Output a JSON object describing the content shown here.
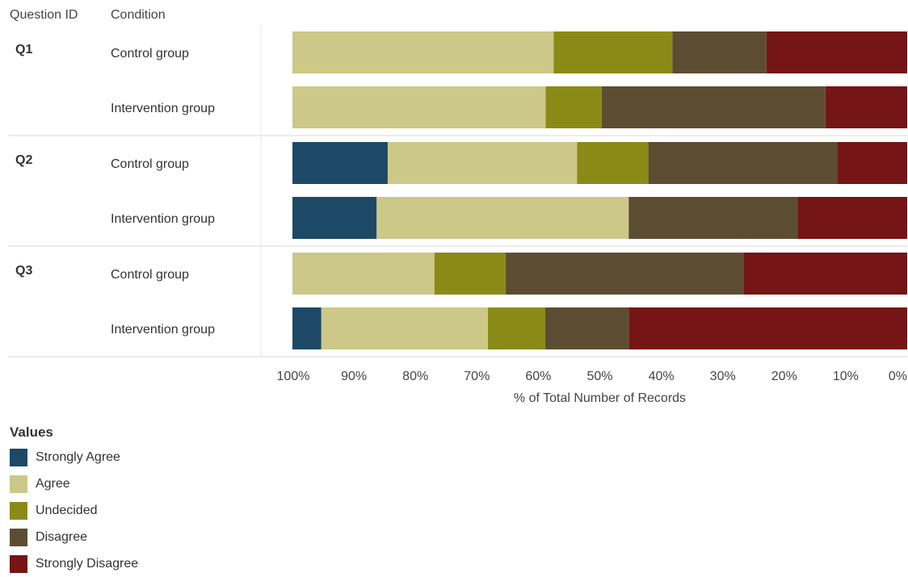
{
  "header": {
    "question_id_label": "Question ID",
    "condition_label": "Condition"
  },
  "legend": {
    "title": "Values",
    "items": [
      {
        "label": "Strongly Agree",
        "color": "#1d4966"
      },
      {
        "label": "Agree",
        "color": "#cbc888"
      },
      {
        "label": "Undecided",
        "color": "#8a8b16"
      },
      {
        "label": "Disagree",
        "color": "#5c4d32"
      },
      {
        "label": "Strongly Disagree",
        "color": "#751516"
      }
    ]
  },
  "chart_data": {
    "type": "bar",
    "orientation": "horizontal-stacked-100",
    "xlabel": "% of Total Number of Records",
    "xlim": [
      100,
      0
    ],
    "x_ticks": [
      "100%",
      "90%",
      "80%",
      "70%",
      "60%",
      "50%",
      "40%",
      "30%",
      "20%",
      "10%",
      "0%"
    ],
    "series_order": [
      "Strongly Agree",
      "Agree",
      "Undecided",
      "Disagree",
      "Strongly Disagree"
    ],
    "groups": [
      {
        "question": "Q1",
        "rows": [
          {
            "condition": "Control group",
            "values": [
              0,
              42.5,
              19.3,
              15.3,
              22.9
            ]
          },
          {
            "condition": "Intervention group",
            "values": [
              0,
              41.2,
              9.1,
              36.4,
              13.3
            ]
          }
        ]
      },
      {
        "question": "Q2",
        "rows": [
          {
            "condition": "Control group",
            "values": [
              15.5,
              30.8,
              11.6,
              30.8,
              11.3
            ]
          },
          {
            "condition": "Intervention group",
            "values": [
              13.7,
              41.0,
              0,
              27.5,
              17.8
            ]
          }
        ]
      },
      {
        "question": "Q3",
        "rows": [
          {
            "condition": "Control group",
            "values": [
              0,
              23.1,
              11.6,
              38.7,
              26.6
            ]
          },
          {
            "condition": "Intervention group",
            "values": [
              4.7,
              27.1,
              9.3,
              13.6,
              45.3
            ]
          }
        ]
      }
    ]
  }
}
